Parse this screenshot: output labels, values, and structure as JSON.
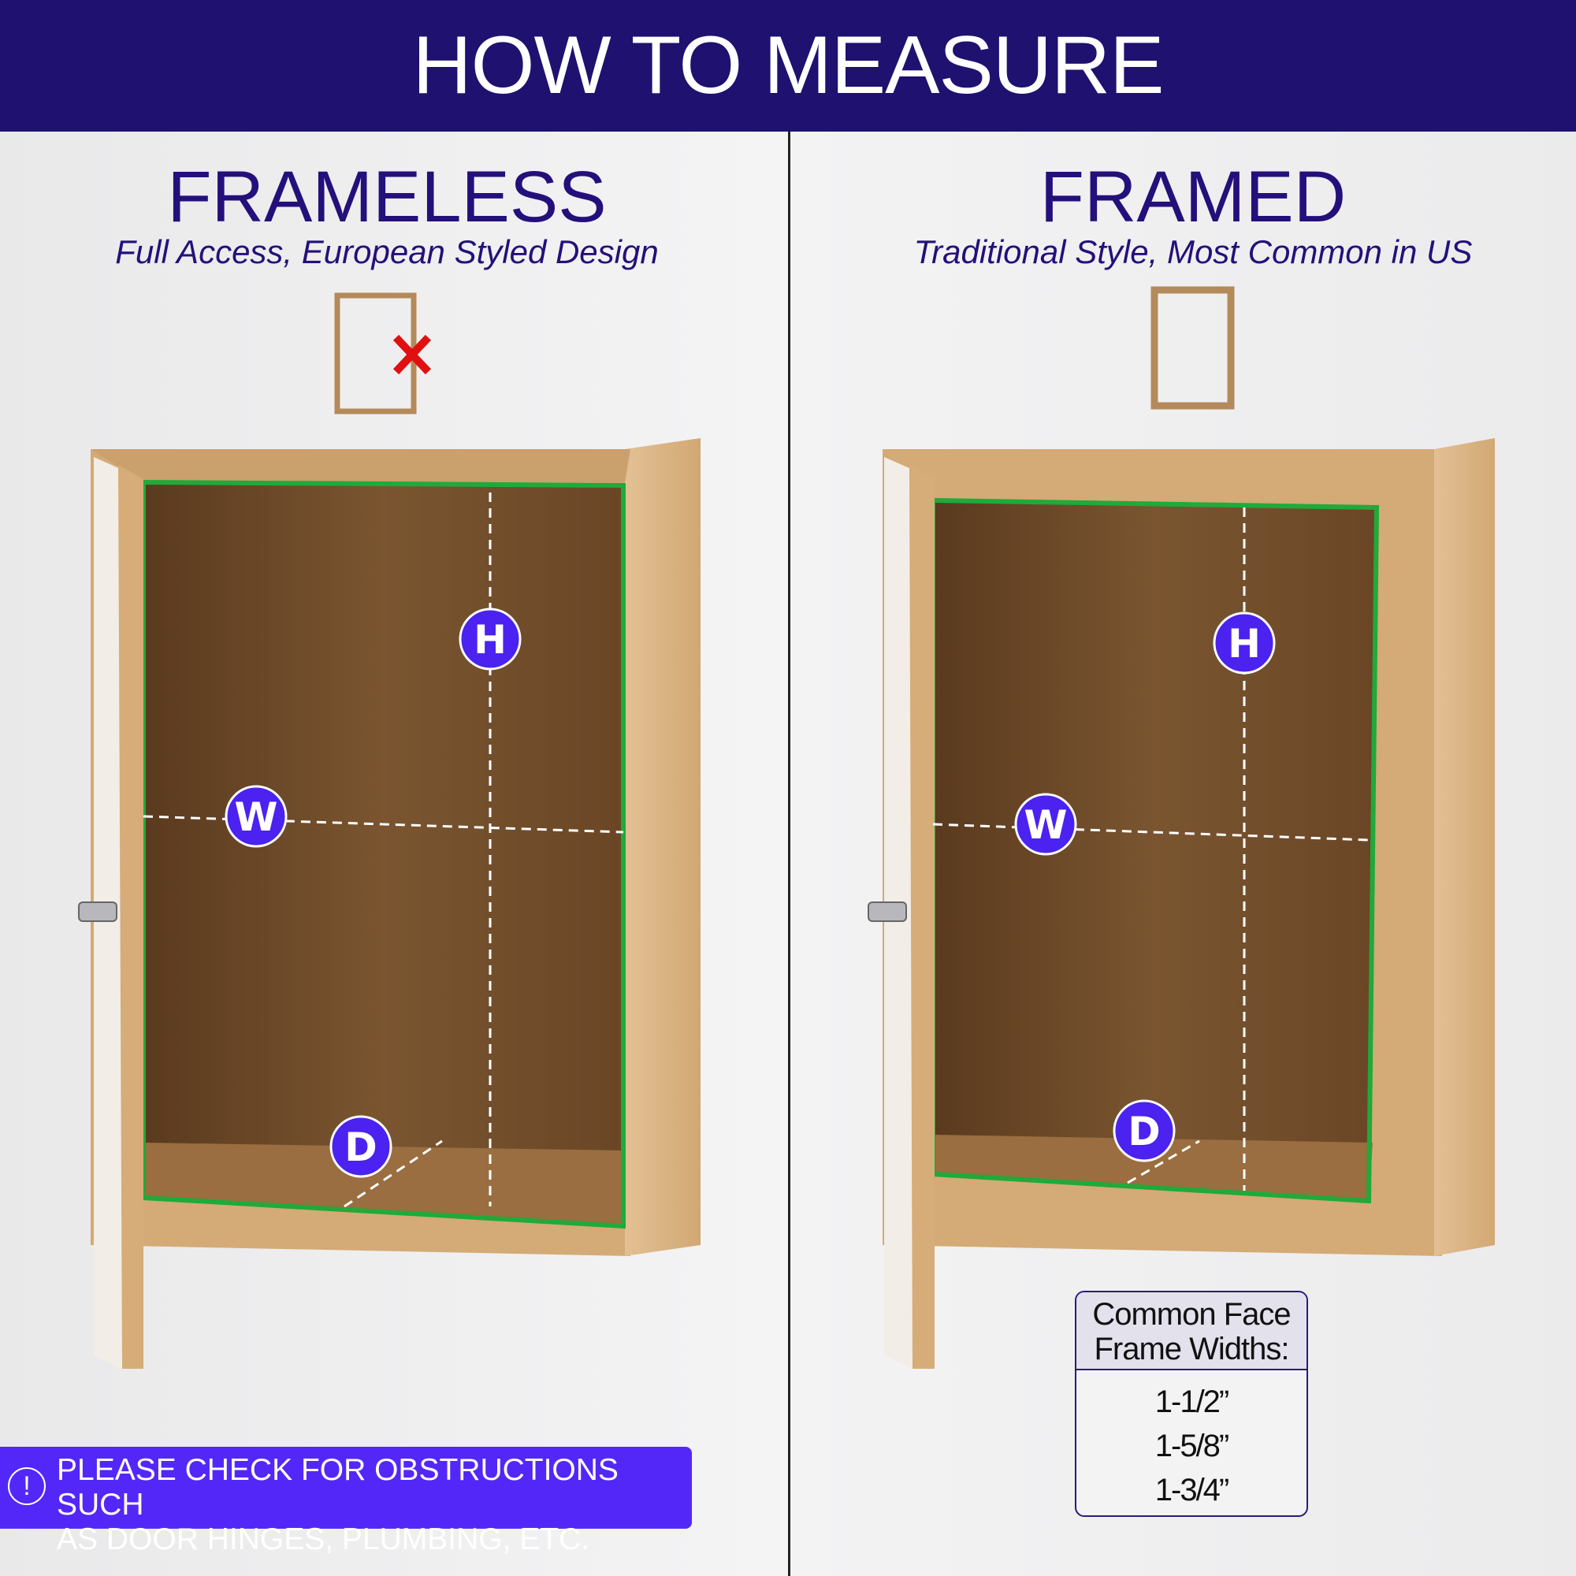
{
  "header": {
    "title": "HOW TO MEASURE"
  },
  "left": {
    "title": "FRAMELESS",
    "subtitle": "Full Access, European Styled Design",
    "markers": {
      "h": "H",
      "w": "W",
      "d": "D"
    }
  },
  "right": {
    "title": "FRAMED",
    "subtitle": "Traditional Style, Most Common in US",
    "markers": {
      "h": "H",
      "w": "W",
      "d": "D"
    },
    "note": {
      "heading_line1": "Common Face",
      "heading_line2": "Frame Widths:",
      "values": [
        "1-1/2”",
        "1-5/8”",
        "1-3/4”"
      ]
    }
  },
  "banner": {
    "icon": "exclamation-circle-icon",
    "line1": "PLEASE CHECK FOR OBSTRUCTIONS SUCH",
    "line2": "AS DOOR HINGES, PLUMBING, ETC."
  },
  "colors": {
    "header": "#1e1170",
    "accent": "#5327f7",
    "outline": "#1faa3a",
    "wood": "#c89a62"
  }
}
